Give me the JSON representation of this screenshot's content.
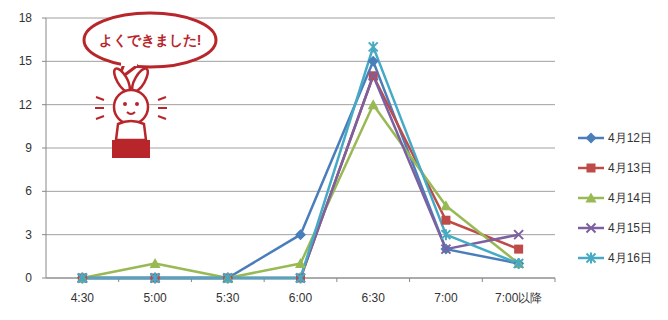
{
  "chart_data": {
    "type": "line",
    "annotations": [
      "よくできました!"
    ],
    "categories": [
      "4:30",
      "5:00",
      "5:30",
      "6:00",
      "6:30",
      "7:00",
      "7:00以降"
    ],
    "series": [
      {
        "name": "4月12日",
        "color": "#4a7ebb",
        "marker": "diamond",
        "values": [
          0,
          0,
          0,
          3,
          15,
          2,
          1
        ]
      },
      {
        "name": "4月13日",
        "color": "#be4b48",
        "marker": "square",
        "values": [
          0,
          0,
          0,
          0,
          14,
          4,
          2
        ]
      },
      {
        "name": "4月14日",
        "color": "#98b954",
        "marker": "triangle",
        "values": [
          0,
          1,
          0,
          1,
          12,
          5,
          1
        ]
      },
      {
        "name": "4月15日",
        "color": "#7d60a0",
        "marker": "x",
        "values": [
          0,
          0,
          0,
          0,
          14,
          2,
          3
        ]
      },
      {
        "name": "4月16日",
        "color": "#46aac5",
        "marker": "star",
        "values": [
          0,
          0,
          0,
          0,
          16,
          3,
          1
        ]
      }
    ],
    "ylim": [
      0,
      18
    ],
    "yticks": [
      0,
      3,
      6,
      9,
      12,
      15,
      18
    ],
    "grid": true,
    "legend": "right"
  }
}
